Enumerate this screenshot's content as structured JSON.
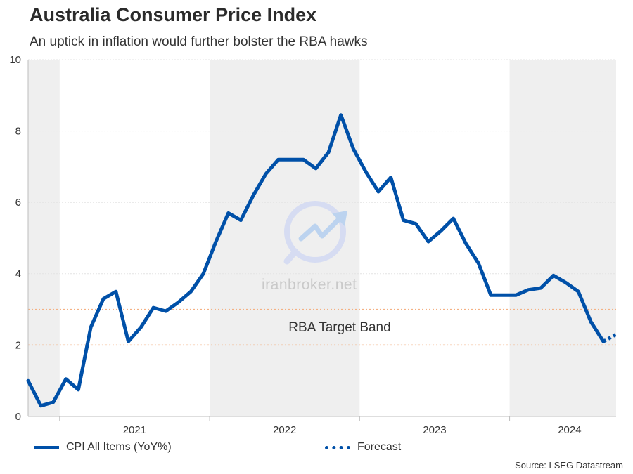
{
  "header": {
    "title": "Australia Consumer Price Index",
    "subtitle": "An uptick in inflation would further bolster the RBA hawks"
  },
  "source": "Source: LSEG Datastream",
  "watermark": "iranbroker.net",
  "colors": {
    "line": "#0050a8",
    "band": "#f4b183",
    "shade": "#efefef",
    "grid": "#e3e3e3"
  },
  "chart_data": {
    "type": "line",
    "ylim": [
      0,
      10
    ],
    "xlim": [
      2020.79,
      2024.71
    ],
    "y_ticks": [
      0,
      2,
      4,
      6,
      8,
      10
    ],
    "x_tick_labels": [
      {
        "label": "2021",
        "x": 2021.5
      },
      {
        "label": "2022",
        "x": 2022.5
      },
      {
        "label": "2023",
        "x": 2023.5
      },
      {
        "label": "2024",
        "x": 2024.4
      }
    ],
    "shaded_years": [
      [
        2020.79,
        2021.0
      ],
      [
        2022.0,
        2023.0
      ],
      [
        2024.0,
        2024.71
      ]
    ],
    "target_band": {
      "low": 2,
      "high": 3,
      "label": "RBA Target Band"
    },
    "legend_position": "bottom",
    "series": [
      {
        "name": "CPI All Items (YoY%)",
        "style": "solid",
        "x": [
          2020.79,
          2020.875,
          2020.958,
          2021.042,
          2021.125,
          2021.208,
          2021.292,
          2021.375,
          2021.458,
          2021.542,
          2021.625,
          2021.708,
          2021.792,
          2021.875,
          2021.958,
          2022.042,
          2022.125,
          2022.208,
          2022.292,
          2022.375,
          2022.458,
          2022.542,
          2022.625,
          2022.708,
          2022.792,
          2022.875,
          2022.958,
          2023.042,
          2023.125,
          2023.208,
          2023.292,
          2023.375,
          2023.458,
          2023.542,
          2023.625,
          2023.708,
          2023.792,
          2023.875,
          2023.958,
          2024.042,
          2024.125,
          2024.208,
          2024.292,
          2024.375,
          2024.458,
          2024.542,
          2024.625
        ],
        "values": [
          1.0,
          0.3,
          0.4,
          1.05,
          0.75,
          2.5,
          3.3,
          3.5,
          2.1,
          2.5,
          3.05,
          2.95,
          3.2,
          3.5,
          4.0,
          4.9,
          5.7,
          5.5,
          6.2,
          6.8,
          7.2,
          7.2,
          7.2,
          6.95,
          7.4,
          8.45,
          7.5,
          6.85,
          6.3,
          6.7,
          5.5,
          5.4,
          4.9,
          5.2,
          5.55,
          4.85,
          4.3,
          3.4,
          3.4,
          3.4,
          3.55,
          3.6,
          3.95,
          3.75,
          3.5,
          2.65,
          2.1
        ]
      },
      {
        "name": "Forecast",
        "style": "dotted",
        "x": [
          2024.625,
          2024.71
        ],
        "values": [
          2.1,
          2.3
        ]
      }
    ]
  }
}
